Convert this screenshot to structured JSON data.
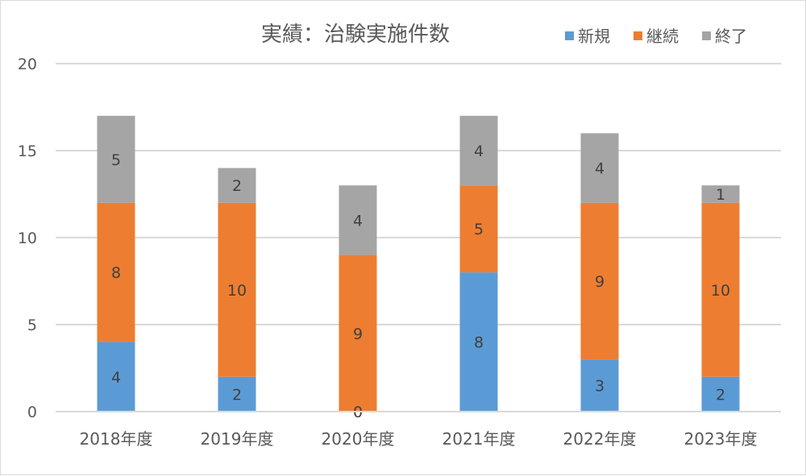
{
  "chart_data": {
    "type": "bar",
    "stacked": true,
    "title": "実績：治験実施件数",
    "categories": [
      "2018年度",
      "2019年度",
      "2020年度",
      "2021年度",
      "2022年度",
      "2023年度"
    ],
    "series": [
      {
        "name": "新規",
        "color": "#5b9bd5",
        "label_color": "#404040",
        "values": [
          4,
          2,
          0,
          8,
          3,
          2
        ]
      },
      {
        "name": "継続",
        "color": "#ed7d31",
        "label_color": "#404040",
        "values": [
          8,
          10,
          9,
          5,
          9,
          10
        ]
      },
      {
        "name": "終了",
        "color": "#a5a5a5",
        "label_color": "#404040",
        "values": [
          5,
          2,
          4,
          4,
          4,
          1
        ]
      }
    ],
    "data_labels": [
      [
        "4",
        "2",
        "0",
        "8",
        "3",
        "2"
      ],
      [
        "8",
        "10",
        "9",
        "5",
        "9",
        "10"
      ],
      [
        "5",
        "2",
        "4",
        "4",
        "4",
        "1"
      ]
    ],
    "ylim": [
      0,
      20
    ],
    "yticks": [
      0,
      5,
      10,
      15,
      20
    ],
    "ytick_labels": [
      "0",
      "5",
      "10",
      "15",
      "20"
    ],
    "grid": true,
    "legend_position": "top-right",
    "gridline_color": "#d9d9d9",
    "text_color": "#595959"
  }
}
